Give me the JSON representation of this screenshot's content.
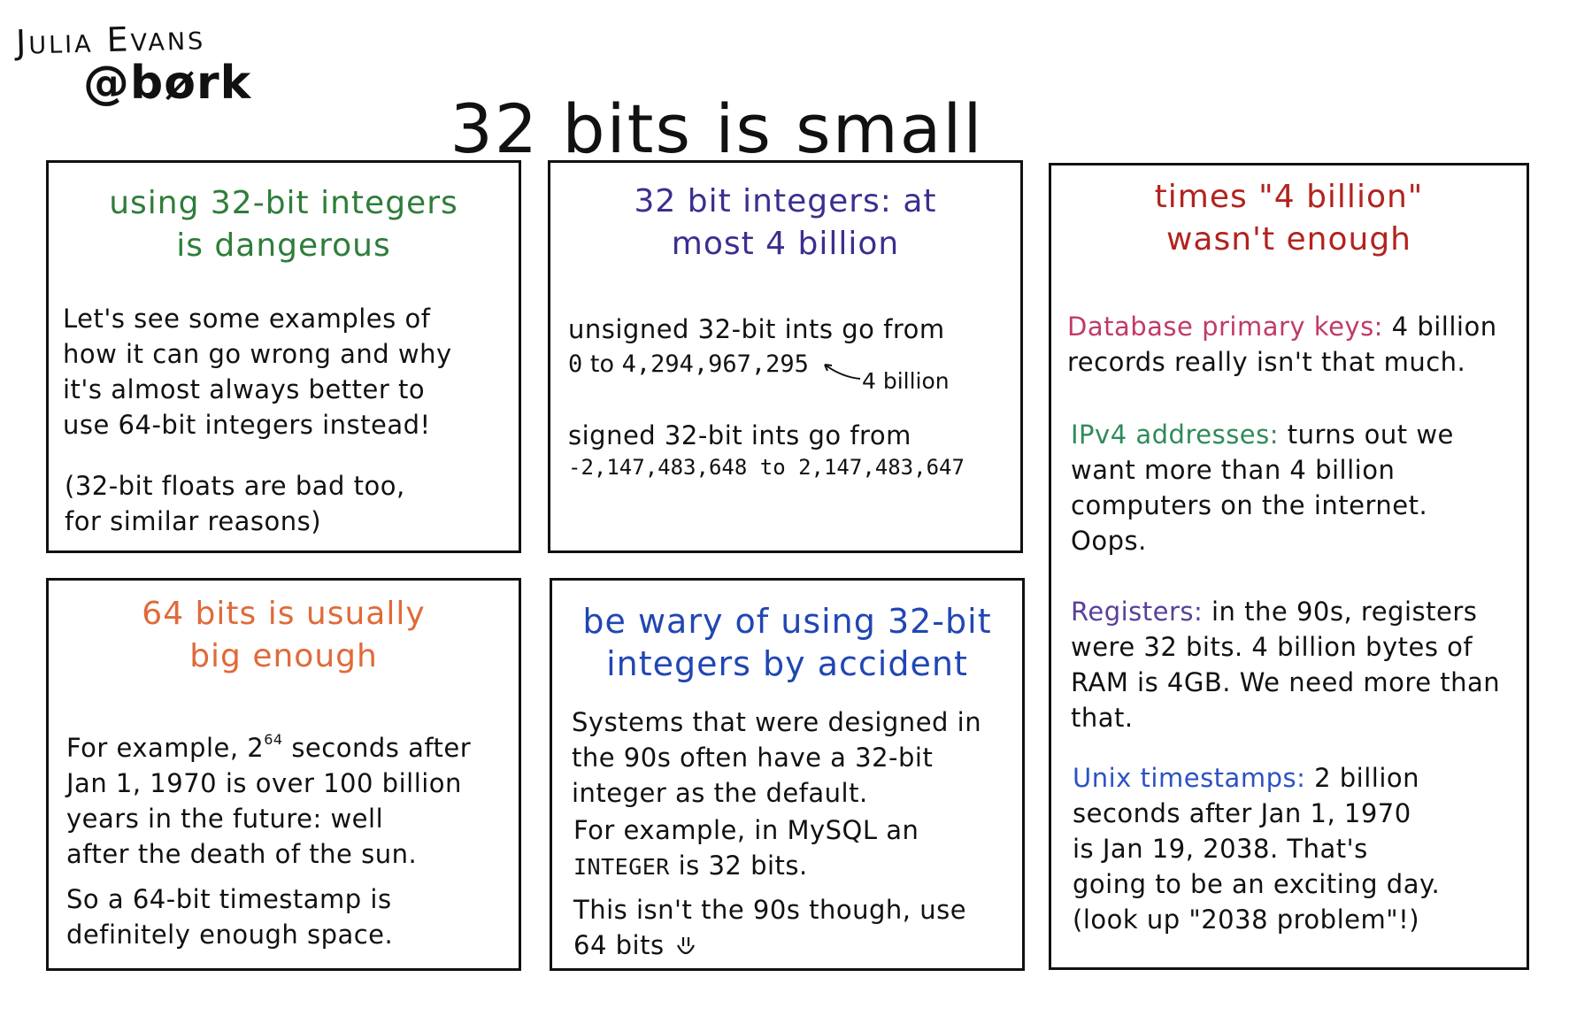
{
  "author": {
    "name": "Julia Evans",
    "handle": "@børk"
  },
  "title": "32 bits is small",
  "panel1": {
    "title_line1": "using 32-bit integers",
    "title_line2": "is dangerous",
    "lines": [
      "Let's see some examples of",
      "how it can go wrong and why",
      "it's almost always better to",
      "use 64-bit integers instead!"
    ],
    "note_lines": [
      "(32-bit floats are bad too,",
      "for similar reasons)"
    ]
  },
  "panel2": {
    "title_line1": "32 bit integers: at",
    "title_line2": "most 4 billion",
    "unsigned_label": "unsigned 32-bit ints go from",
    "unsigned_zero": "0",
    "unsigned_to": "to",
    "unsigned_max": "4,294,967,295",
    "annotation": "4 billion",
    "signed_label": "signed 32-bit ints go from",
    "signed_range": "-2,147,483,648 to 2,147,483,647"
  },
  "panel3": {
    "title_line1": "times \"4 billion\"",
    "title_line2": "wasn't enough",
    "db_label": "Database primary keys:",
    "db_line1_rest": "4 billion",
    "db_line2": "records really isn't that much.",
    "ip_label": "IPv4 addresses:",
    "ip_line1_rest": "turns out we",
    "ip_lines": [
      "want more than 4 billion",
      "computers on the internet.",
      "Oops."
    ],
    "reg_label": "Registers:",
    "reg_line1_rest": "in the 90s, registers",
    "reg_lines": [
      "were 32 bits. 4 billion bytes of",
      "RAM is 4GB. We need more than",
      "that."
    ],
    "unix_label": "Unix timestamps:",
    "unix_line1_rest": "2 billion",
    "unix_lines": [
      "seconds after Jan 1, 1970",
      "is Jan 19, 2038. That's",
      "going to be an exciting day.",
      "(look up \"2038 problem\"!)"
    ]
  },
  "panel4": {
    "title_line1": "64 bits is usually",
    "title_line2": "big enough",
    "ex_prefix": "For example, 2",
    "ex_sup": "64",
    "ex_suffix": "seconds after",
    "ex_lines": [
      "Jan 1, 1970 is over 100 billion",
      "years in the future: well",
      "after the death of the sun."
    ],
    "so_lines": [
      "So a 64-bit timestamp is",
      "definitely enough space."
    ]
  },
  "panel5": {
    "title_line1": "be wary of using 32-bit",
    "title_line2": "integers by accident",
    "sys_lines": [
      "Systems that were designed in",
      "the 90s often have a 32-bit",
      "integer as the default."
    ],
    "ex_line1": "For example, in MySQL an",
    "ex_code": "INTEGER",
    "ex_rest": "is 32 bits.",
    "end_line1": "This isn't the 90s though, use",
    "end_line2": "64 bits"
  }
}
